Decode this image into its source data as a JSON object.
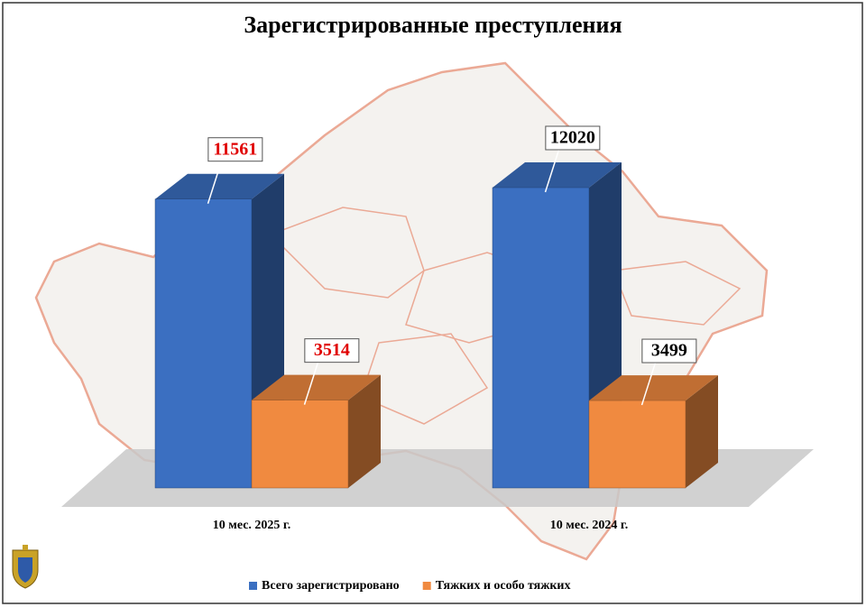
{
  "chart_data": {
    "type": "bar3d",
    "title": "Зарегистрированные преступления",
    "categories": [
      "10 мес. 2025 г.",
      "10 мес. 2024 г."
    ],
    "series": [
      {
        "name": "Всего зарегистрировано",
        "color": "#3b6fc1",
        "values": [
          11561,
          12020
        ]
      },
      {
        "name": "Тяжких и особо тяжких",
        "color": "#f08a40",
        "values": [
          3514,
          3499
        ]
      }
    ],
    "value_label_colors": [
      "#e00000",
      "#000000"
    ],
    "legend": "bottom"
  }
}
